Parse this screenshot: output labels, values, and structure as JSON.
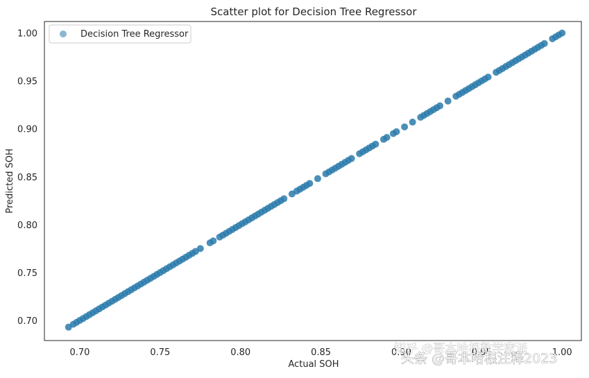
{
  "chart_data": {
    "type": "scatter",
    "title": "Scatter plot for Decision Tree Regressor",
    "xlabel": "Actual SOH",
    "ylabel": "Predicted SOH",
    "xlim": [
      0.678,
      1.012
    ],
    "ylim": [
      0.679,
      1.012
    ],
    "xticks": [
      "0.70",
      "0.75",
      "0.80",
      "0.85",
      "0.90",
      "0.95",
      "1.00"
    ],
    "yticks": [
      "0.70",
      "0.75",
      "0.80",
      "0.85",
      "0.90",
      "0.95",
      "1.00"
    ],
    "grid": false,
    "legend_position": "top-left",
    "point_color": "#2b7bab",
    "series": [
      {
        "name": "Decision Tree Regressor",
        "color": "#2b7bab",
        "x": [
          0.693,
          0.696,
          0.698,
          0.7,
          0.702,
          0.704,
          0.706,
          0.708,
          0.71,
          0.712,
          0.714,
          0.716,
          0.718,
          0.72,
          0.722,
          0.724,
          0.726,
          0.728,
          0.73,
          0.732,
          0.734,
          0.736,
          0.738,
          0.74,
          0.742,
          0.744,
          0.746,
          0.748,
          0.75,
          0.752,
          0.754,
          0.756,
          0.758,
          0.76,
          0.762,
          0.764,
          0.766,
          0.768,
          0.77,
          0.772,
          0.775,
          0.781,
          0.783,
          0.787,
          0.789,
          0.791,
          0.793,
          0.795,
          0.797,
          0.799,
          0.801,
          0.803,
          0.805,
          0.807,
          0.809,
          0.811,
          0.813,
          0.815,
          0.817,
          0.819,
          0.821,
          0.823,
          0.825,
          0.827,
          0.832,
          0.835,
          0.837,
          0.839,
          0.841,
          0.843,
          0.848,
          0.853,
          0.855,
          0.857,
          0.859,
          0.861,
          0.863,
          0.865,
          0.867,
          0.869,
          0.874,
          0.876,
          0.878,
          0.88,
          0.882,
          0.884,
          0.889,
          0.891,
          0.895,
          0.897,
          0.902,
          0.907,
          0.912,
          0.914,
          0.916,
          0.918,
          0.92,
          0.922,
          0.924,
          0.929,
          0.934,
          0.936,
          0.938,
          0.94,
          0.942,
          0.944,
          0.946,
          0.948,
          0.95,
          0.952,
          0.954,
          0.959,
          0.961,
          0.963,
          0.965,
          0.967,
          0.969,
          0.971,
          0.973,
          0.975,
          0.977,
          0.979,
          0.981,
          0.983,
          0.985,
          0.987,
          0.989,
          0.994,
          0.996,
          0.998,
          1.0
        ],
        "y": [
          0.693,
          0.696,
          0.698,
          0.7,
          0.702,
          0.704,
          0.706,
          0.708,
          0.71,
          0.712,
          0.714,
          0.716,
          0.718,
          0.72,
          0.722,
          0.724,
          0.726,
          0.728,
          0.73,
          0.732,
          0.734,
          0.736,
          0.738,
          0.74,
          0.742,
          0.744,
          0.746,
          0.748,
          0.75,
          0.752,
          0.754,
          0.756,
          0.758,
          0.76,
          0.762,
          0.764,
          0.766,
          0.768,
          0.77,
          0.772,
          0.775,
          0.781,
          0.783,
          0.787,
          0.789,
          0.791,
          0.793,
          0.795,
          0.797,
          0.799,
          0.801,
          0.803,
          0.805,
          0.807,
          0.809,
          0.811,
          0.813,
          0.815,
          0.817,
          0.819,
          0.821,
          0.823,
          0.825,
          0.827,
          0.832,
          0.835,
          0.837,
          0.839,
          0.841,
          0.843,
          0.848,
          0.853,
          0.855,
          0.857,
          0.859,
          0.861,
          0.863,
          0.865,
          0.867,
          0.869,
          0.874,
          0.876,
          0.878,
          0.88,
          0.882,
          0.884,
          0.889,
          0.891,
          0.895,
          0.897,
          0.902,
          0.907,
          0.912,
          0.914,
          0.916,
          0.918,
          0.92,
          0.922,
          0.924,
          0.929,
          0.934,
          0.936,
          0.938,
          0.94,
          0.942,
          0.944,
          0.946,
          0.948,
          0.95,
          0.952,
          0.954,
          0.959,
          0.961,
          0.963,
          0.965,
          0.967,
          0.969,
          0.971,
          0.973,
          0.975,
          0.977,
          0.979,
          0.981,
          0.983,
          0.985,
          0.987,
          0.989,
          0.994,
          0.996,
          0.998,
          1.0
        ]
      }
    ]
  },
  "watermark": {
    "line1": "知乎 @哥本哈根数学家派",
    "line2": "头条 @哥本哈根注释2023"
  }
}
